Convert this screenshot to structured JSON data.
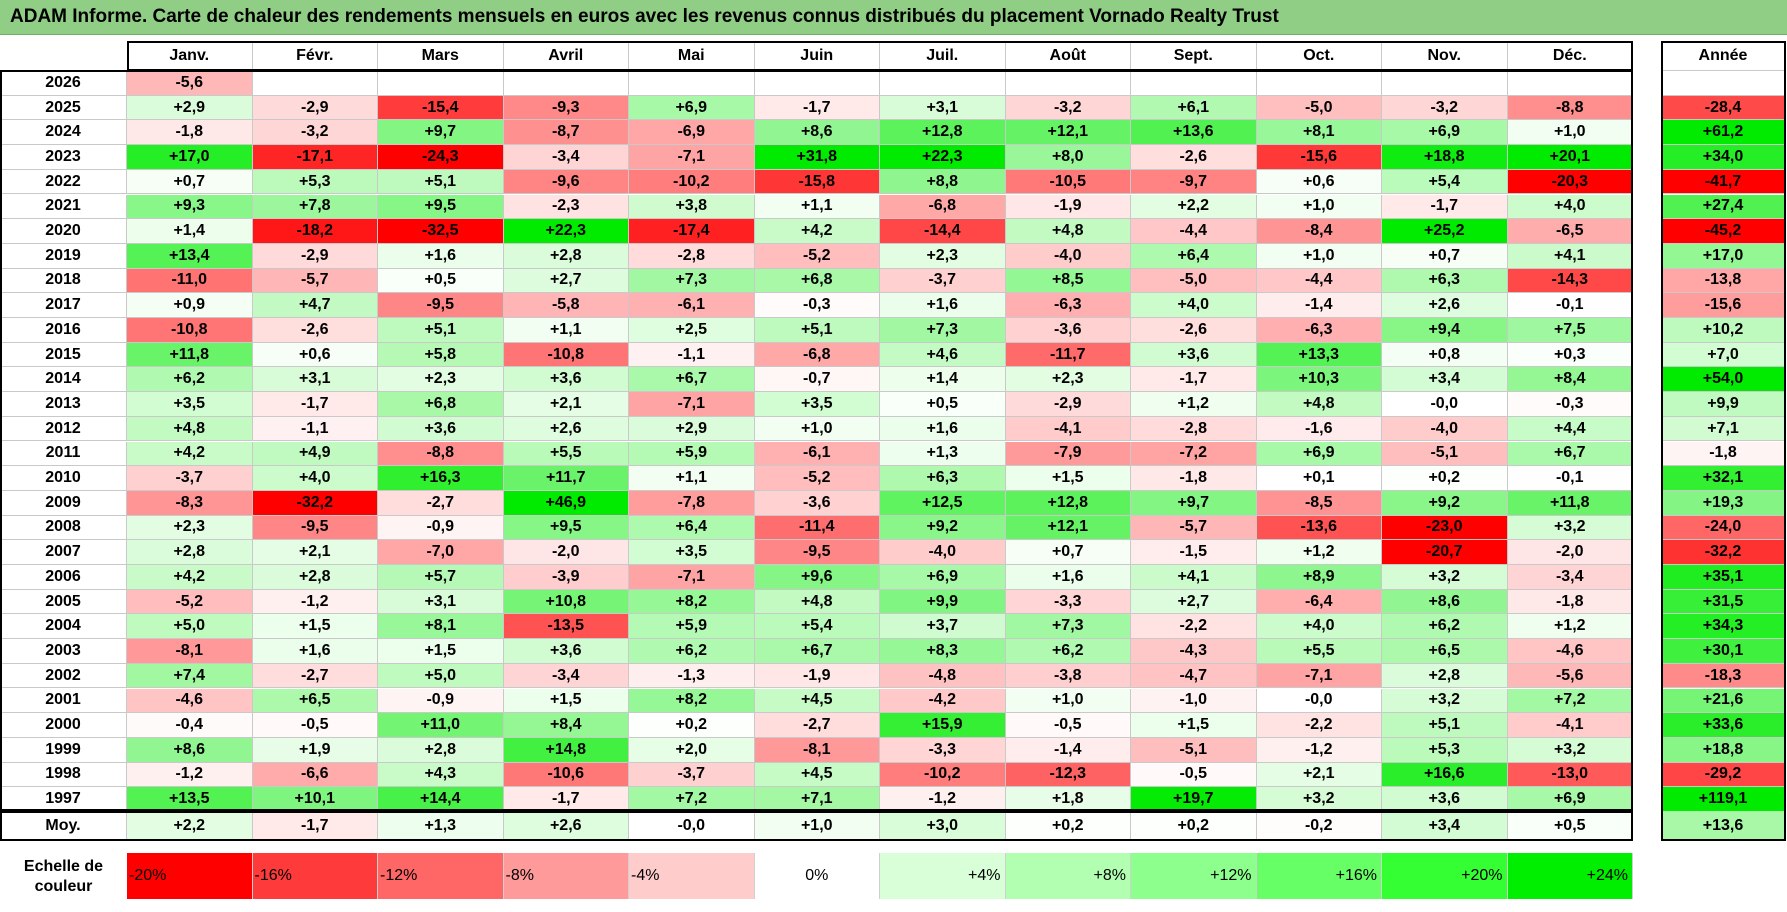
{
  "title": "ADAM Informe. Carte de chaleur des rendements mensuels en euros avec les revenus connus distribués du placement Vornado Realty Trust",
  "chart_data": {
    "type": "heatmap",
    "title": "ADAM Informe. Carte de chaleur des rendements mensuels en euros avec les revenus connus distribués du placement Vornado Realty Trust",
    "columns": [
      "Janv.",
      "Févr.",
      "Mars",
      "Avril",
      "Mai",
      "Juin",
      "Juil.",
      "Août",
      "Sept.",
      "Oct.",
      "Nov.",
      "Déc."
    ],
    "year_header": "Année",
    "rows": [
      {
        "year": "2026",
        "months": [
          "-5,6",
          "",
          "",
          "",
          "",
          "",
          "",
          "",
          "",
          "",
          "",
          ""
        ],
        "annual": ""
      },
      {
        "year": "2025",
        "months": [
          "+2,9",
          "-2,9",
          "-15,4",
          "-9,3",
          "+6,9",
          "-1,7",
          "+3,1",
          "-3,2",
          "+6,1",
          "-5,0",
          "-3,2",
          "-8,8"
        ],
        "annual": "-28,4"
      },
      {
        "year": "2024",
        "months": [
          "-1,8",
          "-3,2",
          "+9,7",
          "-8,7",
          "-6,9",
          "+8,6",
          "+12,8",
          "+12,1",
          "+13,6",
          "+8,1",
          "+6,9",
          "+1,0"
        ],
        "annual": "+61,2"
      },
      {
        "year": "2023",
        "months": [
          "+17,0",
          "-17,1",
          "-24,3",
          "-3,4",
          "-7,1",
          "+31,8",
          "+22,3",
          "+8,0",
          "-2,6",
          "-15,6",
          "+18,8",
          "+20,1"
        ],
        "annual": "+34,0"
      },
      {
        "year": "2022",
        "months": [
          "+0,7",
          "+5,3",
          "+5,1",
          "-9,6",
          "-10,2",
          "-15,8",
          "+8,8",
          "-10,5",
          "-9,7",
          "+0,6",
          "+5,4",
          "-20,3"
        ],
        "annual": "-41,7"
      },
      {
        "year": "2021",
        "months": [
          "+9,3",
          "+7,8",
          "+9,5",
          "-2,3",
          "+3,8",
          "+1,1",
          "-6,8",
          "-1,9",
          "+2,2",
          "+1,0",
          "-1,7",
          "+4,0"
        ],
        "annual": "+27,4"
      },
      {
        "year": "2020",
        "months": [
          "+1,4",
          "-18,2",
          "-32,5",
          "+22,3",
          "-17,4",
          "+4,2",
          "-14,4",
          "+4,8",
          "-4,4",
          "-8,4",
          "+25,2",
          "-6,5"
        ],
        "annual": "-45,2"
      },
      {
        "year": "2019",
        "months": [
          "+13,4",
          "-2,9",
          "+1,6",
          "+2,8",
          "-2,8",
          "-5,2",
          "+2,3",
          "-4,0",
          "+6,4",
          "+1,0",
          "+0,7",
          "+4,1"
        ],
        "annual": "+17,0"
      },
      {
        "year": "2018",
        "months": [
          "-11,0",
          "-5,7",
          "+0,5",
          "+2,7",
          "+7,3",
          "+6,8",
          "-3,7",
          "+8,5",
          "-5,0",
          "-4,4",
          "+6,3",
          "-14,3"
        ],
        "annual": "-13,8"
      },
      {
        "year": "2017",
        "months": [
          "+0,9",
          "+4,7",
          "-9,5",
          "-5,8",
          "-6,1",
          "-0,3",
          "+1,6",
          "-6,3",
          "+4,0",
          "-1,4",
          "+2,6",
          "-0,1"
        ],
        "annual": "-15,6"
      },
      {
        "year": "2016",
        "months": [
          "-10,8",
          "-2,6",
          "+5,1",
          "+1,1",
          "+2,5",
          "+5,1",
          "+7,3",
          "-3,6",
          "-2,6",
          "-6,3",
          "+9,4",
          "+7,5"
        ],
        "annual": "+10,2"
      },
      {
        "year": "2015",
        "months": [
          "+11,8",
          "+0,6",
          "+5,8",
          "-10,8",
          "-1,1",
          "-6,8",
          "+4,6",
          "-11,7",
          "+3,6",
          "+13,3",
          "+0,8",
          "+0,3"
        ],
        "annual": "+7,0"
      },
      {
        "year": "2014",
        "months": [
          "+6,2",
          "+3,1",
          "+2,3",
          "+3,6",
          "+6,7",
          "-0,7",
          "+1,4",
          "+2,3",
          "-1,7",
          "+10,3",
          "+3,4",
          "+8,4"
        ],
        "annual": "+54,0"
      },
      {
        "year": "2013",
        "months": [
          "+3,5",
          "-1,7",
          "+6,8",
          "+2,1",
          "-7,1",
          "+3,5",
          "+0,5",
          "-2,9",
          "+1,2",
          "+4,8",
          "-0,0",
          "-0,3"
        ],
        "annual": "+9,9"
      },
      {
        "year": "2012",
        "months": [
          "+4,8",
          "-1,1",
          "+3,6",
          "+2,6",
          "+2,9",
          "+1,0",
          "+1,6",
          "-4,1",
          "-2,8",
          "-1,6",
          "-4,0",
          "+4,4"
        ],
        "annual": "+7,1"
      },
      {
        "year": "2011",
        "months": [
          "+4,2",
          "+4,9",
          "-8,8",
          "+5,5",
          "+5,9",
          "-6,1",
          "+1,3",
          "-7,9",
          "-7,2",
          "+6,9",
          "-5,1",
          "+6,7"
        ],
        "annual": "-1,8"
      },
      {
        "year": "2010",
        "months": [
          "-3,7",
          "+4,0",
          "+16,3",
          "+11,7",
          "+1,1",
          "-5,2",
          "+6,3",
          "+1,5",
          "-1,8",
          "+0,1",
          "+0,2",
          "-0,1"
        ],
        "annual": "+32,1"
      },
      {
        "year": "2009",
        "months": [
          "-8,3",
          "-32,2",
          "-2,7",
          "+46,9",
          "-7,8",
          "-3,6",
          "+12,5",
          "+12,8",
          "+9,7",
          "-8,5",
          "+9,2",
          "+11,8"
        ],
        "annual": "+19,3"
      },
      {
        "year": "2008",
        "months": [
          "+2,3",
          "-9,5",
          "-0,9",
          "+9,5",
          "+6,4",
          "-11,4",
          "+9,2",
          "+12,1",
          "-5,7",
          "-13,6",
          "-23,0",
          "+3,2"
        ],
        "annual": "-24,0"
      },
      {
        "year": "2007",
        "months": [
          "+2,8",
          "+2,1",
          "-7,0",
          "-2,0",
          "+3,5",
          "-9,5",
          "-4,0",
          "+0,7",
          "-1,5",
          "+1,2",
          "-20,7",
          "-2,0"
        ],
        "annual": "-32,2"
      },
      {
        "year": "2006",
        "months": [
          "+4,2",
          "+2,8",
          "+5,7",
          "-3,9",
          "-7,1",
          "+9,6",
          "+6,9",
          "+1,6",
          "+4,1",
          "+8,9",
          "+3,2",
          "-3,4"
        ],
        "annual": "+35,1"
      },
      {
        "year": "2005",
        "months": [
          "-5,2",
          "-1,2",
          "+3,1",
          "+10,8",
          "+8,2",
          "+4,8",
          "+9,9",
          "-3,3",
          "+2,7",
          "-6,4",
          "+8,6",
          "-1,8"
        ],
        "annual": "+31,5"
      },
      {
        "year": "2004",
        "months": [
          "+5,0",
          "+1,5",
          "+8,1",
          "-13,5",
          "+5,9",
          "+5,4",
          "+3,7",
          "+7,3",
          "-2,2",
          "+4,0",
          "+6,2",
          "+1,2"
        ],
        "annual": "+34,3"
      },
      {
        "year": "2003",
        "months": [
          "-8,1",
          "+1,6",
          "+1,5",
          "+3,6",
          "+6,2",
          "+6,7",
          "+8,3",
          "+6,2",
          "-4,3",
          "+5,5",
          "+6,5",
          "-4,6"
        ],
        "annual": "+30,1"
      },
      {
        "year": "2002",
        "months": [
          "+7,4",
          "-2,7",
          "+5,0",
          "-3,4",
          "-1,3",
          "-1,9",
          "-4,8",
          "-3,8",
          "-4,7",
          "-7,1",
          "+2,8",
          "-5,6"
        ],
        "annual": "-18,3"
      },
      {
        "year": "2001",
        "months": [
          "-4,6",
          "+6,5",
          "-0,9",
          "+1,5",
          "+8,2",
          "+4,5",
          "-4,2",
          "+1,0",
          "-1,0",
          "-0,0",
          "+3,2",
          "+7,2"
        ],
        "annual": "+21,6"
      },
      {
        "year": "2000",
        "months": [
          "-0,4",
          "-0,5",
          "+11,0",
          "+8,4",
          "+0,2",
          "-2,7",
          "+15,9",
          "-0,5",
          "+1,5",
          "-2,2",
          "+5,1",
          "-4,1"
        ],
        "annual": "+33,6"
      },
      {
        "year": "1999",
        "months": [
          "+8,6",
          "+1,9",
          "+2,8",
          "+14,8",
          "+2,0",
          "-8,1",
          "-3,3",
          "-1,4",
          "-5,1",
          "-1,2",
          "+5,3",
          "+3,2"
        ],
        "annual": "+18,8"
      },
      {
        "year": "1998",
        "months": [
          "-1,2",
          "-6,6",
          "+4,3",
          "-10,6",
          "-3,7",
          "+4,5",
          "-10,2",
          "-12,3",
          "-0,5",
          "+2,1",
          "+16,6",
          "-13,0"
        ],
        "annual": "-29,2"
      },
      {
        "year": "1997",
        "months": [
          "+13,5",
          "+10,1",
          "+14,4",
          "-1,7",
          "+7,2",
          "+7,1",
          "-1,2",
          "+1,8",
          "+19,7",
          "+3,2",
          "+3,6",
          "+6,9"
        ],
        "annual": "+119,1"
      }
    ],
    "average": {
      "label": "Moy.",
      "months": [
        "+2,2",
        "-1,7",
        "+1,3",
        "+2,6",
        "-0,0",
        "+1,0",
        "+3,0",
        "+0,2",
        "+0,2",
        "-0,2",
        "+3,4",
        "+0,5"
      ],
      "annual": "+13,6"
    },
    "color_scale": {
      "label_line1": "Echelle de",
      "label_line2": "couleur",
      "steps": [
        {
          "label": "-20%",
          "color": "#ff0000"
        },
        {
          "label": "-16%",
          "color": "#ff3a3a"
        },
        {
          "label": "-12%",
          "color": "#ff6666"
        },
        {
          "label": "-8%",
          "color": "#ff9a9a"
        },
        {
          "label": "-4%",
          "color": "#ffcccc"
        },
        {
          "label": "0%",
          "color": "#ffffff"
        },
        {
          "label": "+4%",
          "color": "#d9ffd9"
        },
        {
          "label": "+8%",
          "color": "#b2ffb2"
        },
        {
          "label": "+12%",
          "color": "#8cff8c"
        },
        {
          "label": "+16%",
          "color": "#66ff66"
        },
        {
          "label": "+20%",
          "color": "#33ff33"
        },
        {
          "label": "+24%",
          "color": "#00ee00"
        }
      ]
    }
  }
}
